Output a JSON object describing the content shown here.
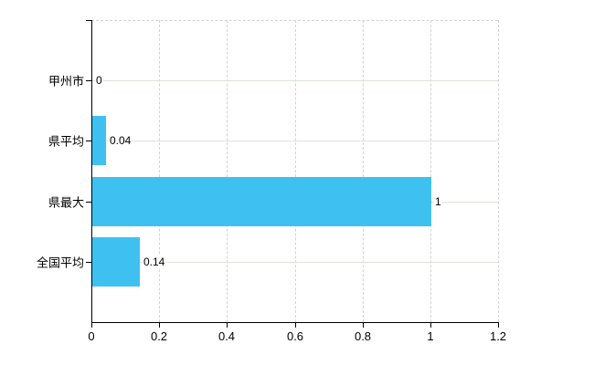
{
  "chart_data": {
    "type": "bar",
    "orientation": "horizontal",
    "title": "",
    "xlabel": "",
    "ylabel": "",
    "categories": [
      "甲州市",
      "県平均",
      "県最大",
      "全国平均"
    ],
    "values": [
      0,
      0.04,
      1,
      0.14
    ],
    "value_labels": [
      "0",
      "0.04",
      "1",
      "0.14"
    ],
    "xlim": [
      0,
      1.2
    ],
    "x_ticks": [
      0,
      0.2,
      0.4,
      0.6,
      0.8,
      1,
      1.2
    ],
    "x_tick_labels": [
      "0",
      "0.2",
      "0.4",
      "0.6",
      "0.8",
      "1",
      "1.2"
    ],
    "grid": true,
    "legend": "none",
    "bar_color": "#3ec1f1",
    "axis_color": "#000000",
    "h_gridline_color": "#dde3d8",
    "v_gridline_color": "#d6d0d6",
    "background_color": "#ffffff"
  }
}
